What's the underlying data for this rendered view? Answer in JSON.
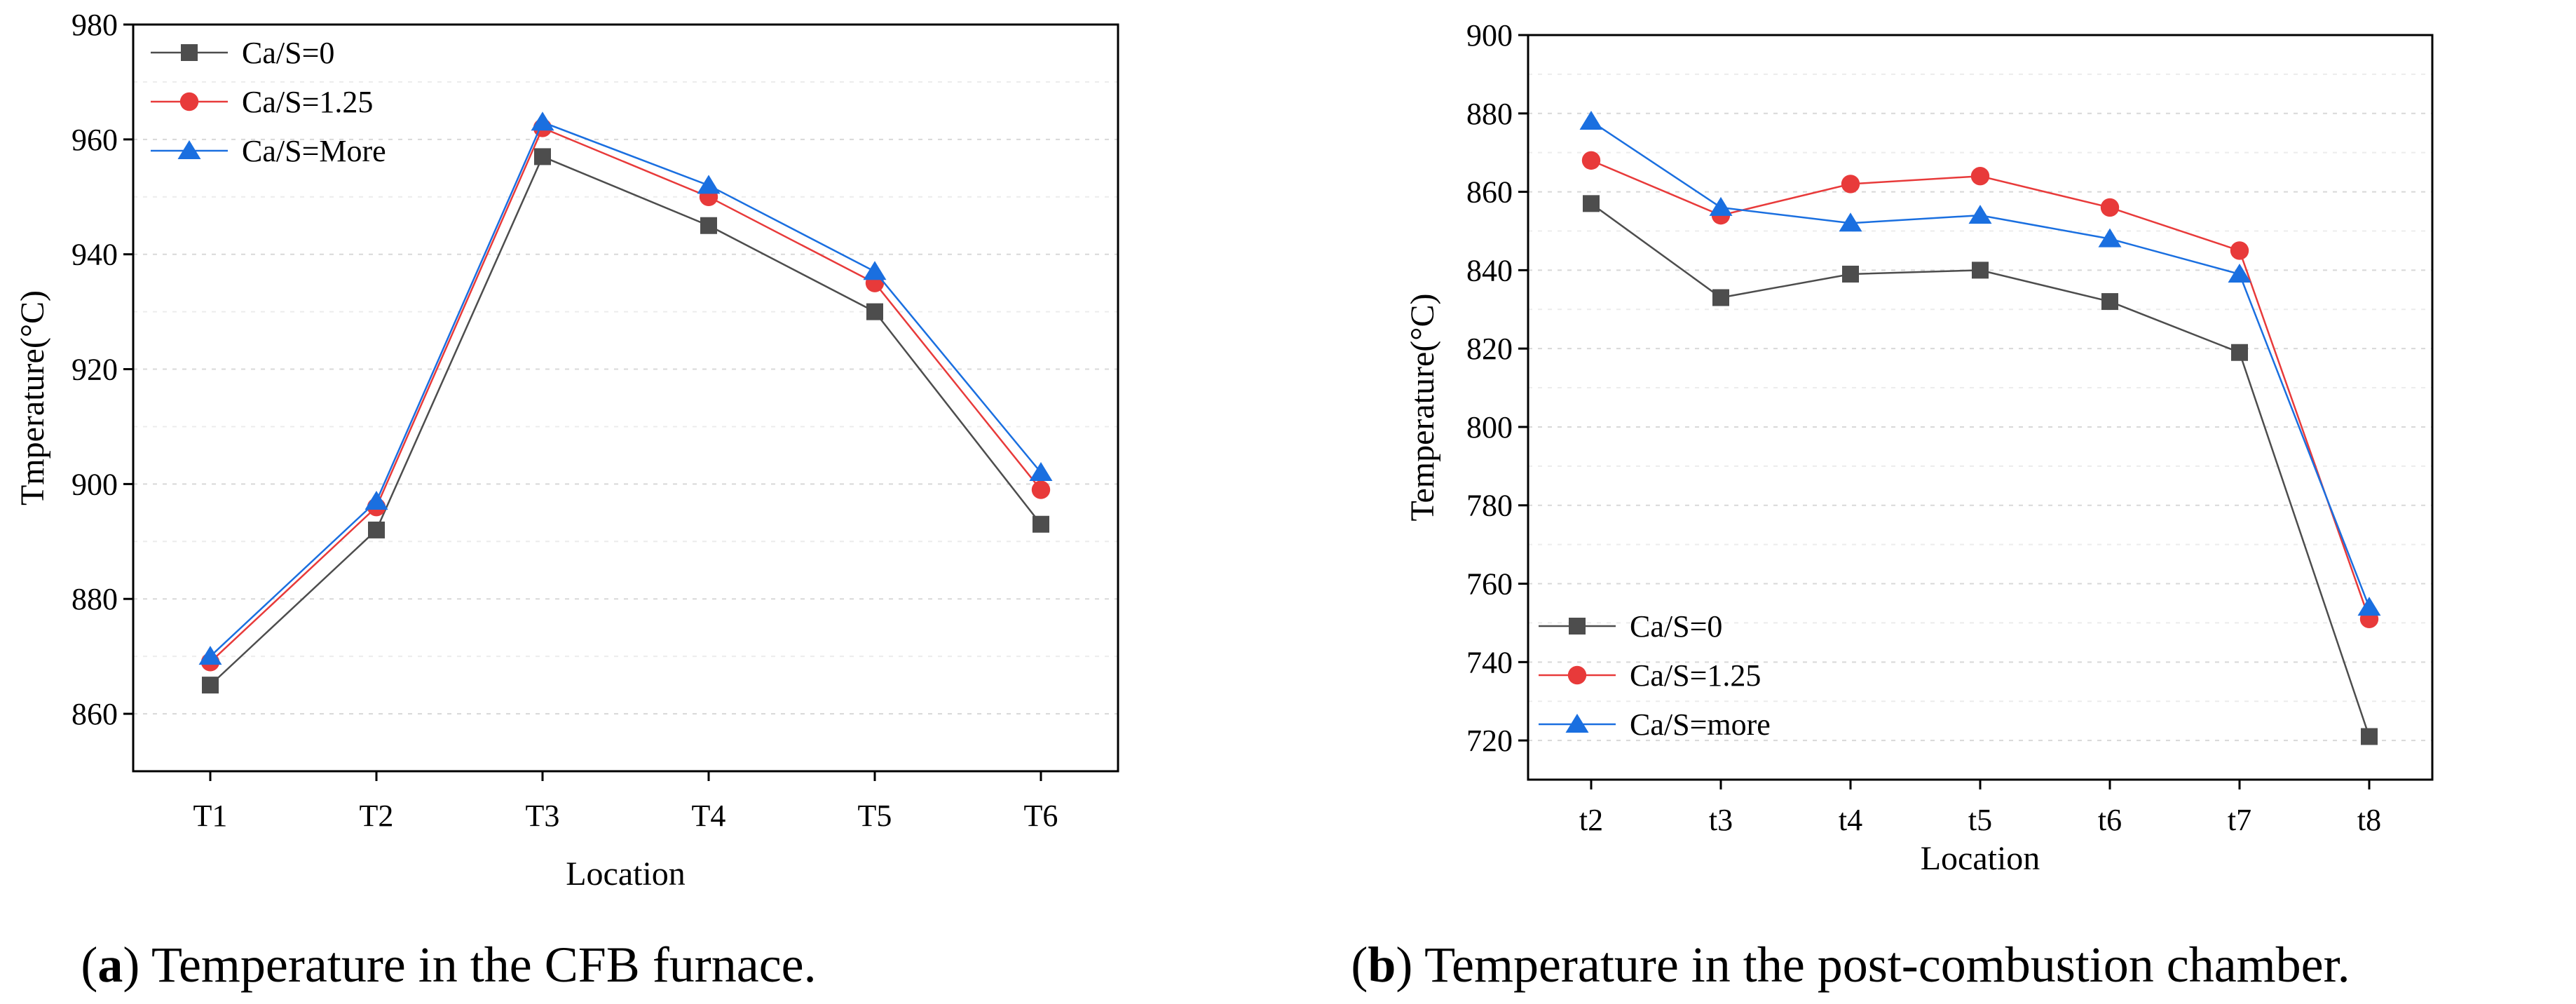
{
  "chart_data": [
    {
      "type": "line",
      "caption_label": "a",
      "caption_text": "Temperature in the CFB furnace.",
      "xlabel": "Location",
      "ylabel": "Tmperature(°C)",
      "ylim": [
        850,
        980
      ],
      "yticks": [
        860,
        880,
        900,
        920,
        940,
        960,
        980
      ],
      "categories": [
        "T1",
        "T2",
        "T3",
        "T4",
        "T5",
        "T6"
      ],
      "grid": "dashed-horizontal",
      "legend_position": "top-left",
      "series": [
        {
          "name": "Ca/S=0",
          "marker": "square",
          "color": "#4d4d4d",
          "values": [
            865,
            892,
            957,
            945,
            930,
            893
          ]
        },
        {
          "name": "Ca/S=1.25",
          "marker": "circle",
          "color": "#e83a3a",
          "values": [
            869,
            896,
            962,
            950,
            935,
            899
          ]
        },
        {
          "name": "Ca/S=More",
          "marker": "triangle",
          "color": "#1a6fe0",
          "values": [
            870,
            897,
            963,
            952,
            937,
            902
          ]
        }
      ]
    },
    {
      "type": "line",
      "caption_label": "b",
      "caption_text": "Temperature in the post-combustion chamber.",
      "xlabel": "Location",
      "ylabel": "Temperature(°C)",
      "ylim": [
        710,
        900
      ],
      "yticks": [
        720,
        740,
        760,
        780,
        800,
        820,
        840,
        860,
        880,
        900
      ],
      "categories": [
        "t2",
        "t3",
        "t4",
        "t5",
        "t6",
        "t7",
        "t8"
      ],
      "grid": "dashed-horizontal",
      "legend_position": "bottom-left",
      "series": [
        {
          "name": "Ca/S=0",
          "marker": "square",
          "color": "#4d4d4d",
          "values": [
            857,
            833,
            839,
            840,
            832,
            819,
            721
          ]
        },
        {
          "name": "Ca/S=1.25",
          "marker": "circle",
          "color": "#e83a3a",
          "values": [
            868,
            854,
            862,
            864,
            856,
            845,
            751
          ]
        },
        {
          "name": "Ca/S=more",
          "marker": "triangle",
          "color": "#1a6fe0",
          "values": [
            878,
            856,
            852,
            854,
            848,
            839,
            754
          ]
        }
      ]
    }
  ]
}
